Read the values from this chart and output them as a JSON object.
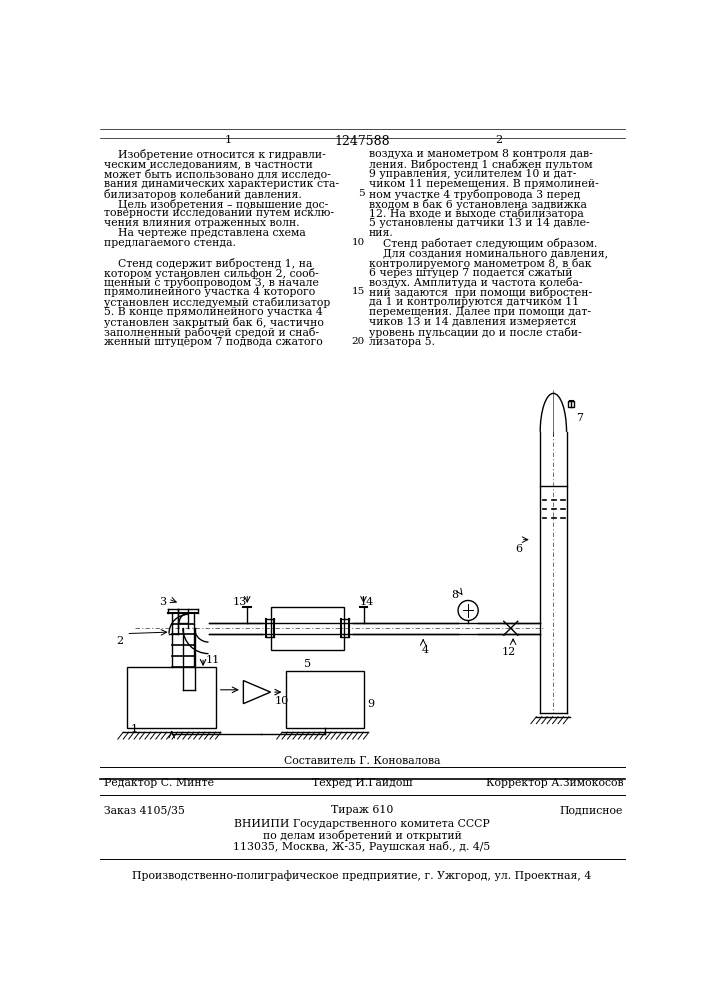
{
  "page_number_center": "1247588",
  "page_num_left": "1",
  "page_num_right": "2",
  "text_left": [
    "    Изобретение относится к гидравли-",
    "ческим исследованиям, в частности",
    "может быть использовано для исследо-",
    "вания динамических характеристик ста-",
    "билизаторов колебаний давления.",
    "    Цель изобретения – повышение дос-",
    "товерности исследований путем исклю-",
    "чения влияния отраженных волн.",
    "    На чертеже представлена схема",
    "предлагаемого стенда.",
    "",
    "    Стенд содержит вибростенд 1, на",
    "котором установлен сильфон 2, сооб-",
    "щенный с трубопроводом 3, в начале",
    "прямолинейного участка 4 которого",
    "установлен исследуемый стабилизатор",
    "5. В конце прямолинейного участка 4",
    "установлен закрытый бак 6, частично",
    "заполненный рабочей средой и снаб-",
    "женный штуцером 7 подвода сжатого"
  ],
  "text_right": [
    "воздуха и манометром 8 контроля дав-",
    "ления. Вибростенд 1 снабжен пультом",
    "9 управления, усилителем 10 и дат-",
    "чиком 11 перемещения. В прямолиней-",
    "ном участке 4 трубопровода 3 перед",
    "входом в бак 6 установлена задвижка",
    "12. На входе и выходе стабилизатора",
    "5 установлены датчики 13 и 14 давле-",
    "ния.",
    "    Стенд работает следующим образом.",
    "    Для создания номинального давления,",
    "контролируемого манометром 8, в бак",
    "6 через штуцер 7 подается сжатый",
    "воздух. Амплитуда и частота колеба-",
    "ний задаются  при помощи вибростен-",
    "да 1 и контролируются датчиком 11",
    "перемещения. Далее при помощи дат-",
    "чиков 13 и 14 давления измеряется",
    "уровень пульсации до и после стаби-",
    "лизатора 5."
  ],
  "line_numbers": {
    "4": "5",
    "9": "10",
    "14": "15",
    "19": "20"
  },
  "footer_line1_left": "Редактор С. Минте",
  "footer_line1_center1": "Составитель Г. Коновалова",
  "footer_line1_center2": "Техред И.Гайдош",
  "footer_line1_right": "Корректор А.Зимокосов",
  "footer_line2_left": "Заказ 4105/35",
  "footer_line2_center": "Тираж 610",
  "footer_line2_right": "Подписное",
  "footer_line3": "ВНИИПИ Государственного комитета СССР",
  "footer_line4": "по делам изобретений и открытий",
  "footer_line5": "113035, Москва, Ж-35, Раушская наб., д. 4/5",
  "footer_line6": "Производственно-полиграфическое предприятие, г. Ужгород, ул. Проектная, 4",
  "bg_color": "#ffffff"
}
